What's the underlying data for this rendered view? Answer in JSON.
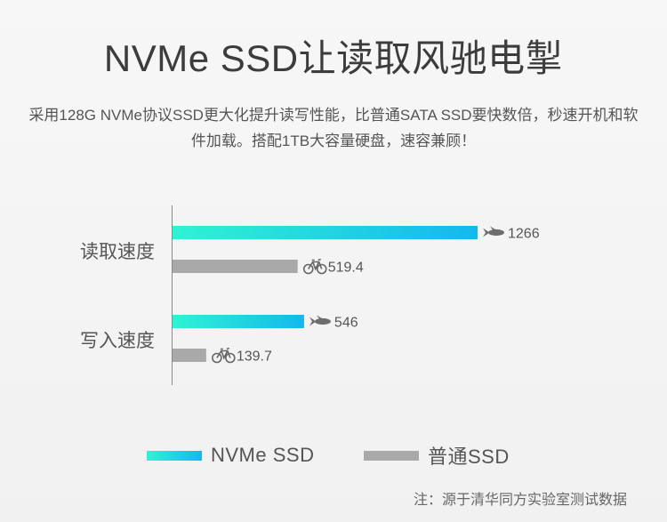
{
  "header": {
    "title": "NVMe SSD让读取风驰电掣",
    "description": "采用128G NVMe协议SSD更大化提升读写性能，比普通SATA SSD要快数倍，秒速开机和软件加载。搭配1TB大容量硬盘，速容兼顾！"
  },
  "chart_data": {
    "type": "bar",
    "orientation": "horizontal",
    "categories": [
      "读取速度",
      "写入速度"
    ],
    "series": [
      {
        "name": "NVMe SSD",
        "values": [
          1266,
          546
        ],
        "value_labels": [
          "1266",
          "546"
        ],
        "color": "#1ee8d6",
        "icon": "rocket-icon"
      },
      {
        "name": "普通SSD",
        "values": [
          519.4,
          139.7
        ],
        "value_labels": [
          "519.4",
          "139.7"
        ],
        "color": "#a9a9a9",
        "icon": "bicycle-icon"
      }
    ],
    "legend_position": "bottom",
    "grid": false
  },
  "footer": {
    "source": "注：源于清华同方实验室测试数据"
  }
}
